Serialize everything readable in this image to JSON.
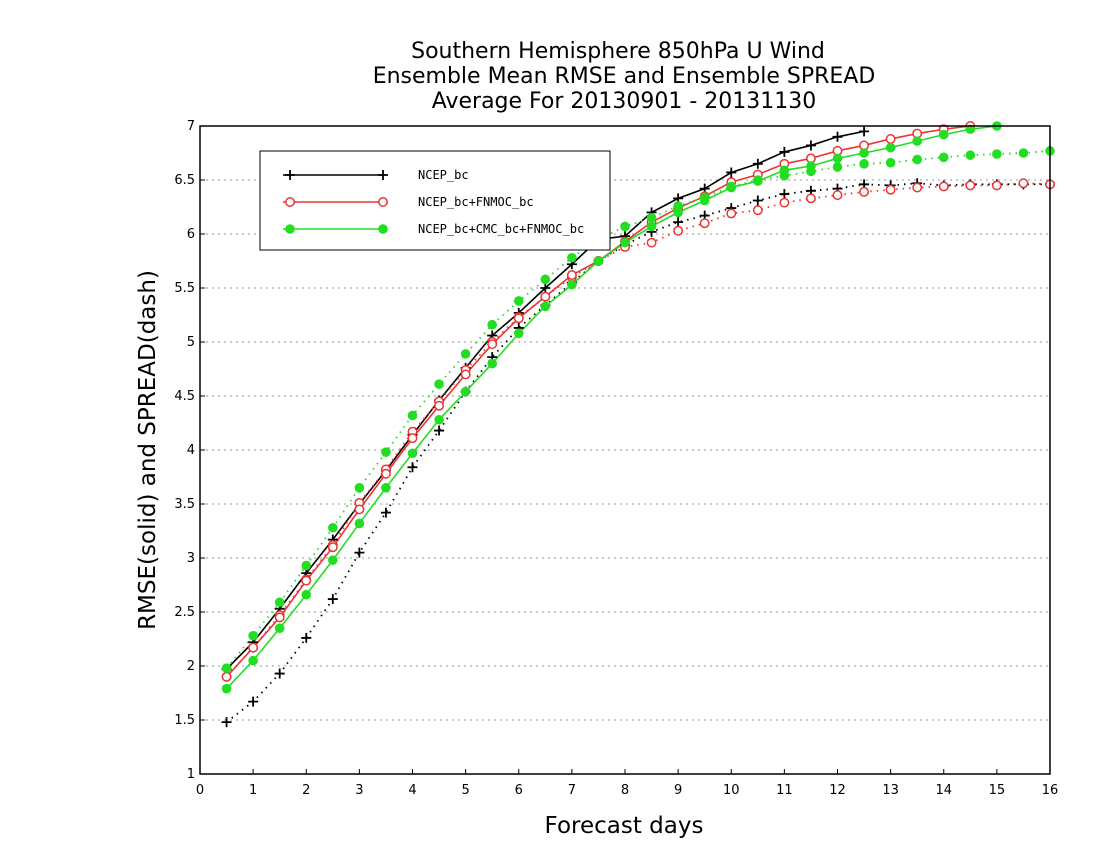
{
  "chart_data": {
    "type": "line",
    "title": [
      "Southern Hemisphere 850hPa U Wind",
      "Ensemble Mean RMSE and Ensemble SPREAD",
      "Average For 20130901 - 20131130"
    ],
    "xlabel": "Forecast days",
    "ylabel": "RMSE(solid) and SPREAD(dash)",
    "xlim": [
      0,
      16
    ],
    "ylim": [
      1,
      7
    ],
    "xticks": [
      "0",
      "1",
      "2",
      "3",
      "4",
      "5",
      "6",
      "7",
      "8",
      "9",
      "10",
      "11",
      "12",
      "13",
      "14",
      "15",
      "16"
    ],
    "yticks": [
      "1",
      "1.5",
      "2",
      "2.5",
      "3",
      "3.5",
      "4",
      "4.5",
      "5",
      "5.5",
      "6",
      "6.5",
      "7"
    ],
    "grid": "horizontal dotted",
    "legend_position": "top-left",
    "x": [
      0.5,
      1,
      1.5,
      2,
      2.5,
      3,
      3.5,
      4,
      4.5,
      5,
      5.5,
      6,
      6.5,
      7,
      7.5,
      8,
      8.5,
      9,
      9.5,
      10,
      10.5,
      11,
      11.5,
      12,
      12.5,
      13,
      13.5,
      14,
      14.5,
      15,
      15.5,
      16
    ],
    "series": [
      {
        "name": "NCEP_bc",
        "color": "#000000",
        "marker": "plus",
        "rmse": [
          1.97,
          2.22,
          2.53,
          2.86,
          3.17,
          3.5,
          3.81,
          4.14,
          4.46,
          4.76,
          5.06,
          5.27,
          5.5,
          5.72,
          5.95,
          5.98,
          6.2,
          6.33,
          6.42,
          6.57,
          6.65,
          6.76,
          6.82,
          6.9,
          6.95,
          7.02,
          7.05,
          7.08,
          7.1,
          7.12,
          7.14,
          7.16
        ],
        "spread": [
          1.48,
          1.67,
          1.93,
          2.26,
          2.62,
          3.05,
          3.42,
          3.84,
          4.18,
          4.54,
          4.86,
          5.13,
          5.34,
          5.55,
          5.75,
          5.9,
          6.02,
          6.11,
          6.17,
          6.24,
          6.31,
          6.37,
          6.4,
          6.42,
          6.46,
          6.45,
          6.47,
          6.45,
          6.46,
          6.46,
          6.46,
          6.46
        ]
      },
      {
        "name": "NCEP_bc+FNMOC_bc",
        "color": "#ee3333",
        "marker": "open-circle",
        "rmse": [
          1.9,
          2.17,
          2.45,
          2.79,
          3.1,
          3.45,
          3.78,
          4.11,
          4.41,
          4.7,
          4.98,
          5.22,
          5.42,
          5.62,
          5.75,
          5.93,
          6.11,
          6.24,
          6.35,
          6.48,
          6.55,
          6.65,
          6.7,
          6.77,
          6.82,
          6.88,
          6.93,
          6.97,
          7.0,
          7.02,
          7.04,
          7.06
        ],
        "spread": [
          1.9,
          2.17,
          2.47,
          2.8,
          3.12,
          3.51,
          3.82,
          4.17,
          4.45,
          4.74,
          5.0,
          5.23,
          5.42,
          5.6,
          5.75,
          5.88,
          5.92,
          6.03,
          6.1,
          6.19,
          6.22,
          6.29,
          6.33,
          6.36,
          6.39,
          6.41,
          6.43,
          6.44,
          6.45,
          6.45,
          6.47,
          6.46
        ]
      },
      {
        "name": "NCEP_bc+CMC_bc+FNMOC_bc",
        "color": "#22dd22",
        "marker": "filled-circle",
        "rmse": [
          1.79,
          2.05,
          2.35,
          2.66,
          2.98,
          3.32,
          3.65,
          3.97,
          4.28,
          4.54,
          4.8,
          5.08,
          5.33,
          5.53,
          5.75,
          5.92,
          6.07,
          6.2,
          6.31,
          6.43,
          6.49,
          6.59,
          6.63,
          6.7,
          6.75,
          6.8,
          6.86,
          6.92,
          6.97,
          7.0,
          7.02,
          7.04
        ],
        "spread": [
          1.98,
          2.28,
          2.59,
          2.93,
          3.28,
          3.65,
          3.98,
          4.32,
          4.61,
          4.89,
          5.16,
          5.38,
          5.58,
          5.78,
          5.95,
          6.07,
          6.15,
          6.26,
          6.34,
          6.44,
          6.5,
          6.54,
          6.58,
          6.62,
          6.65,
          6.66,
          6.69,
          6.71,
          6.73,
          6.74,
          6.75,
          6.77
        ]
      }
    ]
  }
}
